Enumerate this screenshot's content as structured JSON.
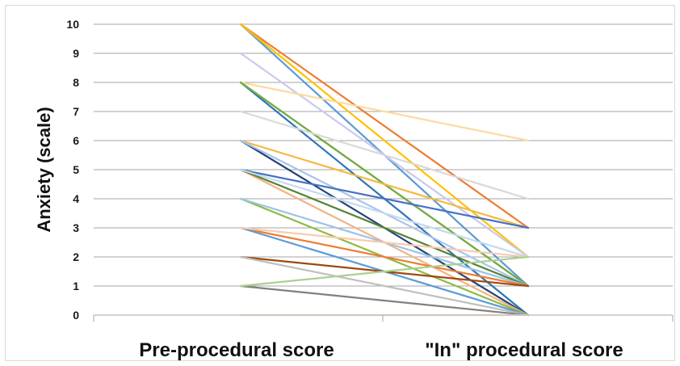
{
  "chart_data": {
    "type": "line",
    "title": "",
    "xlabel": "",
    "ylabel": "Anxiety (scale)",
    "categories": [
      "Pre-procedural score",
      "\"In\" procedural score"
    ],
    "ylim": [
      0,
      10
    ],
    "y_ticks": [
      "0",
      "1",
      "2",
      "3",
      "4",
      "5",
      "6",
      "7",
      "8",
      "9",
      "10"
    ],
    "grid": true,
    "legend": "none",
    "series": [
      {
        "values": [
          10,
          1
        ],
        "color": "#5b9bd5"
      },
      {
        "values": [
          10,
          3
        ],
        "color": "#ed7d31"
      },
      {
        "values": [
          10,
          2
        ],
        "color": "#ffc000"
      },
      {
        "values": [
          9,
          2
        ],
        "color": "#c9c9ec"
      },
      {
        "values": [
          8,
          6
        ],
        "color": "#ffd9a0"
      },
      {
        "values": [
          8,
          0
        ],
        "color": "#2e75b6"
      },
      {
        "values": [
          8,
          1
        ],
        "color": "#bf9000"
      },
      {
        "values": [
          8,
          1
        ],
        "color": "#70ad47"
      },
      {
        "values": [
          7,
          4
        ],
        "color": "#d9d9d9"
      },
      {
        "values": [
          6,
          0
        ],
        "color": "#264478"
      },
      {
        "values": [
          6,
          3
        ],
        "color": "#f4b942"
      },
      {
        "values": [
          6,
          1
        ],
        "color": "#a9c4e8"
      },
      {
        "values": [
          5,
          3
        ],
        "color": "#4472c4"
      },
      {
        "values": [
          5,
          0
        ],
        "color": "#f4b183"
      },
      {
        "values": [
          5,
          1
        ],
        "color": "#548235"
      },
      {
        "values": [
          5,
          2
        ],
        "color": "#c5d9f1"
      },
      {
        "values": [
          4,
          0
        ],
        "color": "#8fbc45"
      },
      {
        "values": [
          4,
          1
        ],
        "color": "#9dc3e6"
      },
      {
        "values": [
          3,
          1
        ],
        "color": "#ed7d31"
      },
      {
        "values": [
          3,
          0
        ],
        "color": "#5b9bd5"
      },
      {
        "values": [
          3,
          2
        ],
        "color": "#f8cbad"
      },
      {
        "values": [
          2,
          1
        ],
        "color": "#9e480e"
      },
      {
        "values": [
          2,
          0
        ],
        "color": "#bfbfbf"
      },
      {
        "values": [
          1,
          0
        ],
        "color": "#808080"
      },
      {
        "values": [
          1,
          2
        ],
        "color": "#a9d18e"
      },
      {
        "values": [
          0,
          0
        ],
        "color": "#fbe5d6"
      }
    ]
  }
}
